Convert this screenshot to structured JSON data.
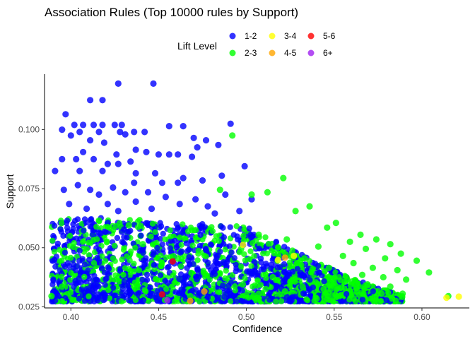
{
  "chart_data": {
    "type": "scatter",
    "title": "Association Rules (Top 10000 rules by Support)",
    "xlabel": "Confidence",
    "ylabel": "Support",
    "xlim": [
      0.385,
      0.627
    ],
    "ylim": [
      0.0245,
      0.1235
    ],
    "x_ticks": [
      "0.40",
      "0.45",
      "0.50",
      "0.55",
      "0.60"
    ],
    "y_ticks": [
      "0.025",
      "0.050",
      "0.075",
      "0.100"
    ],
    "grid": false,
    "legend": {
      "title": "Lift Level",
      "position": "top",
      "items": [
        {
          "label": "1-2",
          "color": "#0000ff"
        },
        {
          "label": "3-4",
          "color": "#ffff00"
        },
        {
          "label": "5-6",
          "color": "#ff0000"
        },
        {
          "label": "2-3",
          "color": "#00ff00"
        },
        {
          "label": "4-5",
          "color": "#ffa500"
        },
        {
          "label": "6+",
          "color": "#a020f0"
        }
      ]
    },
    "series": [
      {
        "name": "1-2",
        "color": "#0000ff",
        "points": [
          [
            0.427,
            0.1195
          ],
          [
            0.447,
            0.1195
          ],
          [
            0.411,
            0.1125
          ],
          [
            0.418,
            0.1125
          ],
          [
            0.397,
            0.1065
          ],
          [
            0.491,
            0.1025
          ],
          [
            0.402,
            0.102
          ],
          [
            0.407,
            0.102
          ],
          [
            0.413,
            0.102
          ],
          [
            0.418,
            0.102
          ],
          [
            0.425,
            0.102
          ],
          [
            0.429,
            0.102
          ],
          [
            0.456,
            0.1015
          ],
          [
            0.464,
            0.1015
          ],
          [
            0.395,
            0.1
          ],
          [
            0.405,
            0.099
          ],
          [
            0.416,
            0.099
          ],
          [
            0.428,
            0.099
          ],
          [
            0.436,
            0.099
          ],
          [
            0.442,
            0.099
          ],
          [
            0.431,
            0.098
          ],
          [
            0.4,
            0.0975
          ],
          [
            0.47,
            0.0965
          ],
          [
            0.477,
            0.0955
          ],
          [
            0.411,
            0.0955
          ],
          [
            0.419,
            0.0945
          ],
          [
            0.484,
            0.0935
          ],
          [
            0.472,
            0.0925
          ],
          [
            0.437,
            0.0915
          ],
          [
            0.443,
            0.0905
          ],
          [
            0.407,
            0.0905
          ],
          [
            0.426,
            0.0895
          ],
          [
            0.45,
            0.0895
          ],
          [
            0.456,
            0.0895
          ],
          [
            0.461,
            0.0895
          ],
          [
            0.469,
            0.0885
          ],
          [
            0.395,
            0.0875
          ],
          [
            0.403,
            0.0875
          ],
          [
            0.413,
            0.0875
          ],
          [
            0.434,
            0.0865
          ],
          [
            0.421,
            0.0855
          ],
          [
            0.427,
            0.0855
          ],
          [
            0.499,
            0.0845
          ],
          [
            0.391,
            0.0825
          ],
          [
            0.405,
            0.0825
          ],
          [
            0.418,
            0.0825
          ],
          [
            0.437,
            0.0815
          ],
          [
            0.448,
            0.0815
          ],
          [
            0.486,
            0.0805
          ],
          [
            0.464,
            0.0795
          ],
          [
            0.475,
            0.0785
          ],
          [
            0.436,
            0.0775
          ],
          [
            0.452,
            0.0775
          ],
          [
            0.461,
            0.0775
          ],
          [
            0.404,
            0.0765
          ],
          [
            0.424,
            0.0755
          ],
          [
            0.396,
            0.0745
          ],
          [
            0.411,
            0.0745
          ],
          [
            0.431,
            0.0735
          ],
          [
            0.444,
            0.0735
          ],
          [
            0.416,
            0.0725
          ],
          [
            0.488,
            0.0725
          ],
          [
            0.454,
            0.0715
          ],
          [
            0.471,
            0.0705
          ],
          [
            0.503,
            0.0705
          ],
          [
            0.437,
            0.0695
          ],
          [
            0.399,
            0.0685
          ],
          [
            0.421,
            0.0685
          ],
          [
            0.462,
            0.0685
          ],
          [
            0.478,
            0.0675
          ],
          [
            0.409,
            0.0665
          ],
          [
            0.446,
            0.0665
          ],
          [
            0.427,
            0.0655
          ],
          [
            0.496,
            0.0655
          ],
          [
            0.482,
            0.0645
          ]
        ]
      },
      {
        "name": "2-3",
        "color": "#00ff00",
        "points": [
          [
            0.492,
            0.0975
          ],
          [
            0.521,
            0.0795
          ],
          [
            0.485,
            0.0745
          ],
          [
            0.512,
            0.0735
          ],
          [
            0.503,
            0.0725
          ],
          [
            0.536,
            0.0675
          ],
          [
            0.528,
            0.0655
          ],
          [
            0.551,
            0.0605
          ],
          [
            0.546,
            0.0585
          ],
          [
            0.565,
            0.0555
          ],
          [
            0.574,
            0.0535
          ],
          [
            0.559,
            0.0525
          ],
          [
            0.582,
            0.0515
          ],
          [
            0.541,
            0.0505
          ],
          [
            0.568,
            0.0495
          ],
          [
            0.588,
            0.0475
          ],
          [
            0.555,
            0.0465
          ],
          [
            0.579,
            0.0455
          ],
          [
            0.597,
            0.0445
          ],
          [
            0.561,
            0.0435
          ],
          [
            0.572,
            0.0415
          ],
          [
            0.586,
            0.0405
          ],
          [
            0.604,
            0.0395
          ],
          [
            0.566,
            0.0385
          ],
          [
            0.578,
            0.0375
          ],
          [
            0.591,
            0.0365
          ],
          [
            0.556,
            0.0355
          ],
          [
            0.569,
            0.0345
          ],
          [
            0.582,
            0.0335
          ],
          [
            0.544,
            0.0325
          ],
          [
            0.563,
            0.0315
          ],
          [
            0.577,
            0.0305
          ],
          [
            0.589,
            0.0305
          ],
          [
            0.615,
            0.0295
          ],
          [
            0.553,
            0.0295
          ],
          [
            0.54,
            0.0285
          ],
          [
            0.561,
            0.0285
          ],
          [
            0.572,
            0.0285
          ],
          [
            0.583,
            0.0285
          ],
          [
            0.395,
            0.0335
          ],
          [
            0.389,
            0.0295
          ],
          [
            0.416,
            0.0615
          ],
          [
            0.433,
            0.0595
          ],
          [
            0.471,
            0.0575
          ],
          [
            0.507,
            0.0555
          ],
          [
            0.523,
            0.0535
          ],
          [
            0.441,
            0.0515
          ],
          [
            0.497,
            0.0495
          ],
          [
            0.518,
            0.0475
          ],
          [
            0.533,
            0.0455
          ],
          [
            0.529,
            0.0435
          ],
          [
            0.547,
            0.0415
          ],
          [
            0.537,
            0.0395
          ],
          [
            0.515,
            0.0375
          ],
          [
            0.525,
            0.0355
          ],
          [
            0.498,
            0.0345
          ],
          [
            0.532,
            0.0335
          ],
          [
            0.511,
            0.0325
          ],
          [
            0.522,
            0.0315
          ],
          [
            0.507,
            0.0305
          ],
          [
            0.468,
            0.0295
          ],
          [
            0.505,
            0.0285
          ],
          [
            0.549,
            0.0275
          ]
        ]
      },
      {
        "name": "3-4",
        "color": "#ffff00",
        "points": [
          [
            0.621,
            0.0293
          ],
          [
            0.614,
            0.0288
          ],
          [
            0.527,
            0.0465
          ],
          [
            0.518,
            0.0448
          ],
          [
            0.498,
            0.0512
          ]
        ]
      },
      {
        "name": "4-5",
        "color": "#ffa500",
        "points": [
          [
            0.522,
            0.0458
          ],
          [
            0.476,
            0.0315
          ],
          [
            0.468,
            0.0275
          ]
        ]
      },
      {
        "name": "5-6",
        "color": "#ff0000",
        "points": [
          [
            0.458,
            0.0442
          ],
          [
            0.452,
            0.0302
          ]
        ]
      },
      {
        "name": "6+",
        "color": "#a020f0",
        "points": [
          [
            0.455,
            0.0277
          ]
        ]
      }
    ]
  }
}
